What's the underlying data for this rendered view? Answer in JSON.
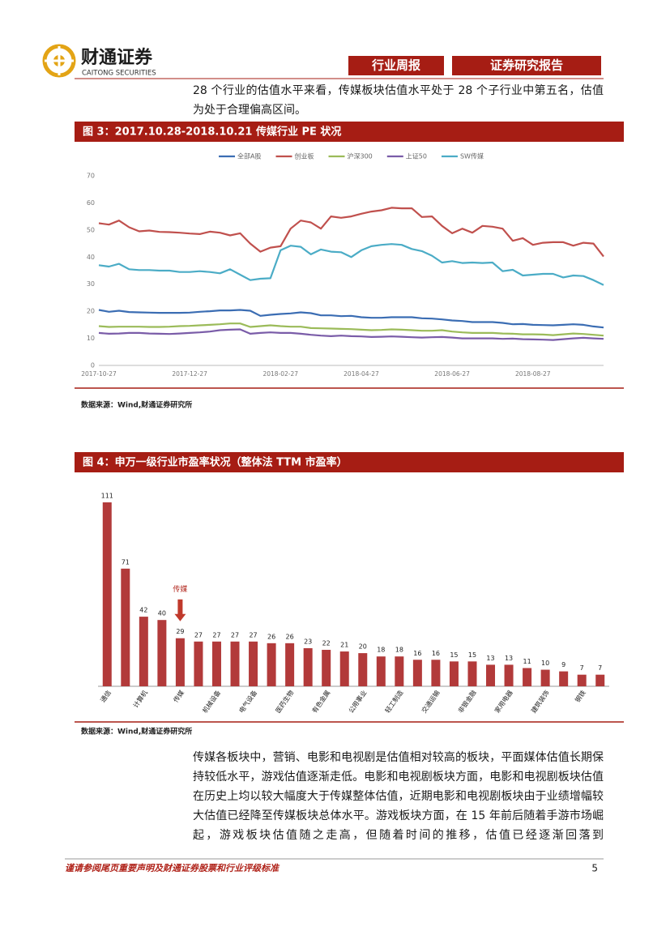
{
  "header": {
    "logo_cn": "财通证券",
    "logo_en": "CAITONG SECURITIES",
    "tag1": "行业周报",
    "tag2": "证券研究报告"
  },
  "paragraphs": [
    "28 个行业的估值水平来看，传媒板块估值水平处于 28 个子行业中第五名，估值为处于合理偏高区间。",
    "传媒各板块中，营销、电影和电视剧是估值相对较高的板块，平面媒体估值长期保持较低水平，游戏估值逐渐走低。电影和电视剧板块方面，电影和电视剧板块估值在历史上均以较大幅度大于传媒整体估值，近期电影和电视剧板块由于业绩增幅较大估值已经降至传媒板块总体水平。游戏板块方面，在 15 年前后随着手游市场崛起，游戏板块估值随之走高，但随着时间的推移，估值已经逐渐回落到"
  ],
  "figures": [
    {
      "title": "图 3：2017.10.28-2018.10.21 传媒行业 PE 状况",
      "source": "数据来源：Wind,财通证券研究所"
    },
    {
      "title": "图 4：申万一级行业市盈率状况（整体法 TTM 市盈率）",
      "source": "数据来源：Wind,财通证券研究所"
    }
  ],
  "chart_data": [
    {
      "type": "line",
      "categories": [
        "2017-10-27",
        null,
        null,
        null,
        null,
        null,
        null,
        null,
        null,
        "2017-12-27",
        null,
        null,
        null,
        null,
        null,
        null,
        null,
        null,
        "2018-02-27",
        null,
        null,
        null,
        null,
        null,
        null,
        null,
        "2018-04-27",
        null,
        null,
        null,
        null,
        null,
        null,
        null,
        null,
        "2018-06-27",
        null,
        null,
        null,
        null,
        null,
        null,
        null,
        "2018-08-27",
        null,
        null,
        null,
        null,
        null,
        null,
        null
      ],
      "series": [
        {
          "name": "全部A股",
          "color": "#3b6db3",
          "values": [
            20.5,
            19.8,
            20.2,
            19.7,
            19.6,
            19.5,
            19.4,
            19.4,
            19.4,
            19.5,
            19.8,
            20,
            20.3,
            20.3,
            20.5,
            20.2,
            18.3,
            18.7,
            19,
            19.2,
            19.6,
            19.3,
            18.5,
            18.5,
            18.2,
            18.3,
            17.8,
            17.6,
            17.6,
            17.8,
            17.8,
            17.8,
            17.4,
            17.3,
            17,
            16.6,
            16.4,
            16,
            16,
            16,
            15.7,
            15.2,
            15.3,
            15,
            14.9,
            14.8,
            15,
            15.2,
            15,
            14.4,
            14
          ]
        },
        {
          "name": "创业板",
          "color": "#c0504d",
          "values": [
            52.5,
            52,
            53.5,
            51,
            49.5,
            49.8,
            49.3,
            49.2,
            49,
            48.7,
            48.5,
            49.4,
            49,
            48,
            48.8,
            45,
            42,
            43.5,
            44,
            50.5,
            53.5,
            52.8,
            50.5,
            55,
            54.5,
            55,
            56,
            56.8,
            57.3,
            58.2,
            58,
            58,
            54.8,
            55,
            51.5,
            48.8,
            50.5,
            49,
            51.5,
            51.2,
            50.5,
            46,
            47,
            44.5,
            45.3,
            45.5,
            45.5,
            44.2,
            45.3,
            45,
            40.2
          ]
        },
        {
          "name": "沪深300",
          "color": "#9bbb59",
          "values": [
            14.5,
            14.2,
            14.3,
            14.3,
            14.3,
            14.2,
            14.2,
            14.3,
            14.5,
            14.6,
            14.8,
            15,
            15.2,
            15.5,
            15.5,
            14.2,
            14.5,
            14.8,
            14.5,
            14.3,
            14.3,
            13.8,
            13.7,
            13.6,
            13.5,
            13.4,
            13.2,
            13,
            13.1,
            13.3,
            13.2,
            13,
            12.8,
            12.8,
            13,
            12.5,
            12.2,
            12,
            12,
            12,
            11.8,
            11.7,
            11.5,
            11.5,
            11.4,
            11.2,
            11.5,
            11.8,
            11.6,
            11.3,
            11
          ]
        },
        {
          "name": "上证50",
          "color": "#7a5ca8",
          "values": [
            12,
            11.7,
            11.8,
            12,
            12,
            11.8,
            11.7,
            11.6,
            11.8,
            12,
            12.2,
            12.5,
            13,
            13.2,
            13.3,
            11.7,
            12,
            12.2,
            12,
            12,
            11.7,
            11.3,
            11,
            10.8,
            11,
            10.8,
            10.7,
            10.5,
            10.6,
            10.7,
            10.6,
            10.4,
            10.3,
            10.4,
            10.5,
            10.3,
            10,
            10,
            10,
            10,
            9.8,
            9.9,
            9.7,
            9.6,
            9.5,
            9.4,
            9.7,
            10,
            10.2,
            10,
            9.8
          ]
        },
        {
          "name": "SW传媒",
          "color": "#4bacc6",
          "values": [
            37,
            36.5,
            37.5,
            35.5,
            35.2,
            35.2,
            35,
            35,
            34.5,
            34.5,
            34.8,
            34.5,
            34,
            35.5,
            33.5,
            31.5,
            32,
            32.2,
            42.5,
            44.2,
            43.8,
            41,
            42.8,
            42,
            41.8,
            40,
            42.5,
            44,
            44.5,
            44.8,
            44.5,
            43,
            42.2,
            40.5,
            38,
            38.5,
            37.8,
            38,
            37.8,
            38,
            34.8,
            35.3,
            33.2,
            33.5,
            33.8,
            33.8,
            32.5,
            33.2,
            33,
            31.5,
            29.7
          ]
        }
      ],
      "ylim": [
        0,
        70
      ],
      "yticks": [
        0,
        10,
        20,
        30,
        40,
        50,
        60,
        70
      ],
      "grid": false,
      "legend": "top"
    },
    {
      "type": "bar",
      "categories": [
        "通信",
        null,
        "计算机",
        null,
        "传媒",
        null,
        "机械设备",
        null,
        "电气设备",
        null,
        "医药生物",
        null,
        "有色金属",
        null,
        "公用事业",
        null,
        "轻工制造",
        null,
        "交通运输",
        null,
        "非银金融",
        null,
        "家用电器",
        null,
        "建筑装饰",
        null,
        "钢铁",
        null
      ],
      "values": [
        111,
        71,
        42,
        40,
        29,
        27,
        27,
        27,
        27,
        26,
        26,
        23,
        22,
        21,
        20,
        18,
        18,
        16,
        16,
        15,
        15,
        13,
        13,
        11,
        10,
        9,
        7,
        7
      ],
      "color": "#b23a3a",
      "annotation": "传媒"
    }
  ],
  "footer": {
    "note": "谨请参阅尾页重要声明及财通证券股票和行业评级标准",
    "page": 5
  }
}
